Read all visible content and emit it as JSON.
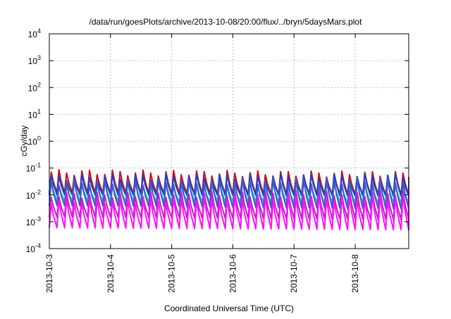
{
  "chart_data": {
    "type": "line",
    "title": "/data/run/goesPlots/archive/2013-10-08/20:00/flux/../bryn/5daysMars.plot",
    "xlabel": "Coordinated Universal Time (UTC)",
    "ylabel": "cGy/day",
    "x_range": [
      "2013-10-03",
      "2013-10-08T21:00"
    ],
    "x_ticks": [
      "2013-10-3",
      "2013-10-4",
      "2013-10-5",
      "2013-10-6",
      "2013-10-7",
      "2013-10-8"
    ],
    "yscale": "log",
    "ylim": [
      0.0001,
      10000
    ],
    "y_ticks": [
      {
        "base": "10",
        "exp": "-4"
      },
      {
        "base": "10",
        "exp": "-3"
      },
      {
        "base": "10",
        "exp": "-2"
      },
      {
        "base": "10",
        "exp": "-1"
      },
      {
        "base": "10",
        "exp": "0"
      },
      {
        "base": "10",
        "exp": "1"
      },
      {
        "base": "10",
        "exp": "2"
      },
      {
        "base": "10",
        "exp": "3"
      },
      {
        "base": "10",
        "exp": "4"
      }
    ],
    "grid": true,
    "period_hours": 3,
    "series": [
      {
        "color": "#cc1010",
        "peak": 0.07,
        "trough": 0.012,
        "peak_late": 0.06,
        "trough_late": 0.01
      },
      {
        "color": "#1a3fd8",
        "peak": 0.045,
        "trough": 0.01,
        "peak_late": 0.05,
        "trough_late": 0.009
      },
      {
        "color": "#19c8d8",
        "peak": 0.025,
        "trough": 0.006,
        "peak_late": 0.025,
        "trough_late": 0.005
      },
      {
        "color": "#3a5cc8",
        "peak": 0.03,
        "trough": 0.004,
        "peak_late": 0.035,
        "trough_late": 0.003
      },
      {
        "color": "#c020c8",
        "peak": 0.01,
        "trough": 0.0015,
        "peak_late": 0.012,
        "trough_late": 0.0012
      },
      {
        "color": "#ff10ff",
        "peak": 0.006,
        "trough": 0.0006,
        "peak_late": 0.008,
        "trough_late": 0.0005
      }
    ]
  }
}
